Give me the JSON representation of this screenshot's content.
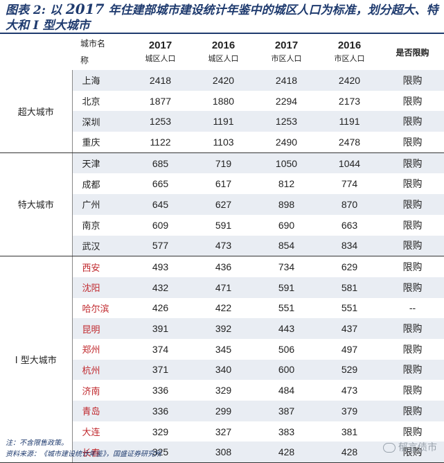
{
  "title": {
    "prefix": "图表 2:  以 ",
    "year": "2017",
    "rest": " 年住建部城市建设统计年鉴中的城区人口为标准，划分超大、特大和 I  型大城市"
  },
  "header": {
    "city_name_l1": "城市名",
    "city_name_l2": "称",
    "cols": [
      {
        "year": "2017",
        "sub": "城区人口"
      },
      {
        "year": "2016",
        "sub": "城区人口"
      },
      {
        "year": "2017",
        "sub": "市区人口"
      },
      {
        "year": "2016",
        "sub": "市区人口"
      }
    ],
    "limit": "是否限购"
  },
  "groups": [
    {
      "label": "超大城市",
      "rows": [
        {
          "city": "上海",
          "v": [
            "2418",
            "2420",
            "2418",
            "2420"
          ],
          "limit": "限购"
        },
        {
          "city": "北京",
          "v": [
            "1877",
            "1880",
            "2294",
            "2173"
          ],
          "limit": "限购"
        },
        {
          "city": "深圳",
          "v": [
            "1253",
            "1191",
            "1253",
            "1191"
          ],
          "limit": "限购"
        },
        {
          "city": "重庆",
          "v": [
            "1122",
            "1103",
            "2490",
            "2478"
          ],
          "limit": "限购"
        }
      ]
    },
    {
      "label": "特大城市",
      "rows": [
        {
          "city": "天津",
          "v": [
            "685",
            "719",
            "1050",
            "1044"
          ],
          "limit": "限购"
        },
        {
          "city": "成都",
          "v": [
            "665",
            "617",
            "812",
            "774"
          ],
          "limit": "限购"
        },
        {
          "city": "广州",
          "v": [
            "645",
            "627",
            "898",
            "870"
          ],
          "limit": "限购"
        },
        {
          "city": "南京",
          "v": [
            "609",
            "591",
            "690",
            "663"
          ],
          "limit": "限购"
        },
        {
          "city": "武汉",
          "v": [
            "577",
            "473",
            "854",
            "834"
          ],
          "limit": "限购"
        }
      ]
    },
    {
      "label": "I  型大城市",
      "rows": [
        {
          "city": "西安",
          "red": true,
          "v": [
            "493",
            "436",
            "734",
            "629"
          ],
          "limit": "限购"
        },
        {
          "city": "沈阳",
          "red": true,
          "v": [
            "432",
            "471",
            "591",
            "581"
          ],
          "limit": "限购"
        },
        {
          "city": "哈尔滨",
          "red": true,
          "v": [
            "426",
            "422",
            "551",
            "551"
          ],
          "limit": "--"
        },
        {
          "city": "昆明",
          "red": true,
          "v": [
            "391",
            "392",
            "443",
            "437"
          ],
          "limit": "限购"
        },
        {
          "city": "郑州",
          "red": true,
          "v": [
            "374",
            "345",
            "506",
            "497"
          ],
          "limit": "限购"
        },
        {
          "city": "杭州",
          "red": true,
          "v": [
            "371",
            "340",
            "600",
            "529"
          ],
          "limit": "限购"
        },
        {
          "city": "济南",
          "red": true,
          "v": [
            "336",
            "329",
            "484",
            "473"
          ],
          "limit": "限购"
        },
        {
          "city": "青岛",
          "red": true,
          "v": [
            "336",
            "299",
            "387",
            "379"
          ],
          "limit": "限购"
        },
        {
          "city": "大连",
          "red": true,
          "v": [
            "329",
            "327",
            "383",
            "381"
          ],
          "limit": "限购"
        },
        {
          "city": "长春",
          "red": true,
          "v": [
            "325",
            "308",
            "428",
            "428"
          ],
          "limit": "限购"
        }
      ]
    }
  ],
  "notes": {
    "note": "注：不含限售政策。",
    "source": "资料来源：《城市建设统计年鉴》，国盛证券研究所"
  },
  "watermark": "郁言债市",
  "colors": {
    "title": "#1e3a6e",
    "highlight_city": "#c0282d",
    "band": "#e9edf3"
  }
}
